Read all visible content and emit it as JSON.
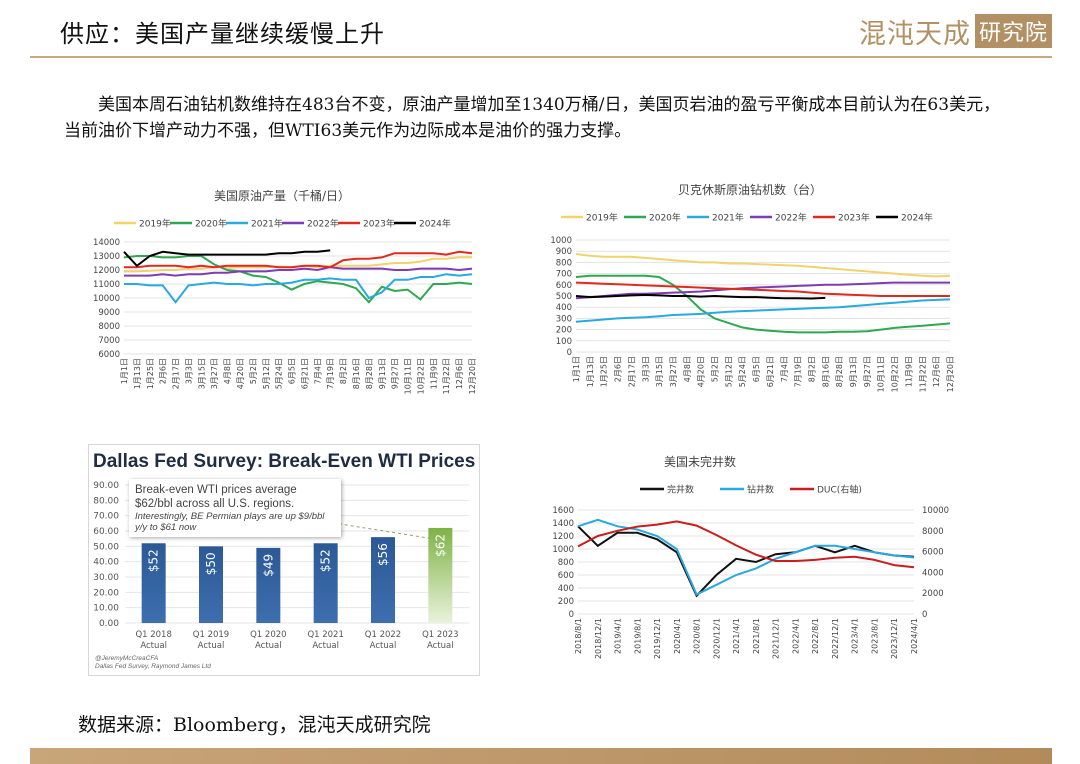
{
  "header": {
    "title": "供应：美国产量继续缓慢上升",
    "logo_text": "混沌天成",
    "logo_box_text": "研究院"
  },
  "paragraph": "美国本周石油钻机数维持在483台不变，原油产量增加至1340万桶/日，美国页岩油的盈亏平衡成本目前认为在63美元，当前油价下增产动力不强，但WTI63美元作为边际成本是油价的强力支撑。",
  "source": "数据来源：Bloomberg，混沌天成研究院",
  "colors": {
    "accent": "#b39064",
    "bar_blue": "#2f5d9a",
    "bar_green": "#7fb245"
  },
  "chart_data": [
    {
      "type": "line",
      "title": "美国原油产量（千桶/日）",
      "xlabel": "",
      "ylabel": "",
      "ylim": [
        6000,
        14000
      ],
      "yticks": [
        6000,
        7000,
        8000,
        9000,
        10000,
        11000,
        12000,
        13000,
        14000
      ],
      "x": [
        "1月1日",
        "1月13日",
        "1月25日",
        "2月6日",
        "2月17日",
        "3月3日",
        "3月15日",
        "3月27日",
        "4月8日",
        "4月20日",
        "5月2日",
        "5月12日",
        "5月24日",
        "6月5日",
        "6月21日",
        "7月4日",
        "7月19日",
        "8月2日",
        "8月16日",
        "8月28日",
        "9月13日",
        "9月27日",
        "10月11日",
        "10月22日",
        "11月9日",
        "11月22日",
        "12月6日",
        "12月20日"
      ],
      "legend_position": "top",
      "series": [
        {
          "name": "2019年",
          "color": "#f3d26c",
          "values": [
            11900,
            11900,
            11950,
            12000,
            12000,
            12100,
            12100,
            12200,
            12150,
            12200,
            12200,
            12200,
            12250,
            12200,
            12300,
            12200,
            12300,
            12300,
            12300,
            12300,
            12400,
            12500,
            12500,
            12600,
            12800,
            12800,
            12900,
            12900
          ]
        },
        {
          "name": "2020年",
          "color": "#2fa84f",
          "values": [
            12900,
            13000,
            13000,
            12900,
            12900,
            13000,
            13000,
            12400,
            12000,
            11900,
            11600,
            11500,
            11100,
            10600,
            11000,
            11200,
            11100,
            11000,
            10700,
            9700,
            10800,
            10500,
            10600,
            9900,
            11000,
            11000,
            11100,
            11000
          ]
        },
        {
          "name": "2021年",
          "color": "#29a9e0",
          "values": [
            11000,
            11000,
            10900,
            10900,
            9700,
            10900,
            11000,
            11100,
            11000,
            11000,
            10900,
            11000,
            11000,
            11100,
            11300,
            11300,
            11400,
            11300,
            11300,
            10000,
            10400,
            11300,
            11300,
            11500,
            11500,
            11700,
            11600,
            11700
          ]
        },
        {
          "name": "2022年",
          "color": "#7d3cb3",
          "values": [
            11600,
            11600,
            11600,
            11700,
            11600,
            11700,
            11700,
            11800,
            11800,
            11900,
            11900,
            11900,
            12000,
            12000,
            12100,
            12000,
            12200,
            12100,
            12100,
            12100,
            12100,
            12000,
            12000,
            12100,
            12100,
            12100,
            12000,
            12100
          ]
        },
        {
          "name": "2023年",
          "color": "#e12a1e",
          "values": [
            12200,
            12200,
            12300,
            12300,
            12300,
            12200,
            12300,
            12200,
            12300,
            12300,
            12300,
            12300,
            12200,
            12200,
            12300,
            12300,
            12200,
            12700,
            12800,
            12800,
            12900,
            13200,
            13200,
            13200,
            13200,
            13100,
            13300,
            13200
          ]
        },
        {
          "name": "2024年",
          "color": "#000000",
          "values": [
            13300,
            12300,
            13000,
            13300,
            13200,
            13100,
            13100,
            13100,
            13100,
            13100,
            13100,
            13100,
            13200,
            13200,
            13300,
            13300,
            13400,
            null,
            null,
            null,
            null,
            null,
            null,
            null,
            null,
            null,
            null,
            null
          ]
        }
      ]
    },
    {
      "type": "line",
      "title": "贝克休斯原油钻机数（台）",
      "xlabel": "",
      "ylabel": "",
      "ylim": [
        0,
        1000
      ],
      "yticks": [
        0,
        100,
        200,
        300,
        400,
        500,
        600,
        700,
        800,
        900,
        1000
      ],
      "x": [
        "1月1日",
        "1月13日",
        "1月25日",
        "2月6日",
        "2月17日",
        "3月3日",
        "3月15日",
        "3月27日",
        "4月8日",
        "4月20日",
        "5月2日",
        "5月12日",
        "5月24日",
        "6月5日",
        "6月21日",
        "7月4日",
        "7月19日",
        "8月2日",
        "8月16日",
        "8月28日",
        "9月13日",
        "9月27日",
        "10月11日",
        "10月22日",
        "11月9日",
        "11月22日",
        "12月6日",
        "12月20日"
      ],
      "legend_position": "top",
      "series": [
        {
          "name": "2019年",
          "color": "#f3d26c",
          "values": [
            875,
            860,
            850,
            850,
            850,
            840,
            830,
            820,
            810,
            800,
            800,
            790,
            790,
            785,
            780,
            775,
            770,
            760,
            750,
            740,
            730,
            720,
            710,
            700,
            690,
            680,
            675,
            680
          ]
        },
        {
          "name": "2020年",
          "color": "#2fa84f",
          "values": [
            670,
            680,
            680,
            680,
            680,
            680,
            670,
            600,
            500,
            380,
            300,
            260,
            220,
            200,
            190,
            180,
            175,
            175,
            175,
            180,
            180,
            185,
            200,
            215,
            225,
            235,
            245,
            255
          ]
        },
        {
          "name": "2021年",
          "color": "#29a9e0",
          "values": [
            270,
            280,
            290,
            300,
            305,
            310,
            320,
            330,
            335,
            340,
            350,
            360,
            365,
            370,
            375,
            380,
            385,
            390,
            395,
            400,
            410,
            420,
            430,
            440,
            450,
            460,
            465,
            470
          ]
        },
        {
          "name": "2022年",
          "color": "#7d3cb3",
          "values": [
            480,
            490,
            500,
            510,
            520,
            520,
            525,
            530,
            535,
            540,
            550,
            560,
            570,
            575,
            580,
            585,
            590,
            595,
            600,
            600,
            605,
            610,
            615,
            620,
            620,
            620,
            620,
            620
          ]
        },
        {
          "name": "2023年",
          "color": "#e12a1e",
          "values": [
            620,
            615,
            610,
            605,
            600,
            595,
            590,
            585,
            580,
            575,
            570,
            565,
            560,
            555,
            550,
            545,
            540,
            530,
            520,
            515,
            510,
            505,
            500,
            500,
            500,
            500,
            500,
            500
          ]
        },
        {
          "name": "2024年",
          "color": "#000000",
          "values": [
            500,
            490,
            495,
            500,
            505,
            510,
            505,
            500,
            500,
            495,
            500,
            495,
            490,
            490,
            485,
            480,
            480,
            478,
            483,
            null,
            null,
            null,
            null,
            null,
            null,
            null,
            null,
            null
          ]
        }
      ]
    },
    {
      "type": "bar",
      "title": "Dallas Fed Survey: Break-Even WTI Prices",
      "categories": [
        "Q1 2018 Actual",
        "Q1 2019 Actual",
        "Q1 2020 Actual",
        "Q1 2021 Actual",
        "Q1 2022 Actual",
        "Q1 2023 Actual"
      ],
      "values": [
        52,
        50,
        49,
        52,
        56,
        62
      ],
      "data_labels": [
        "$52",
        "$50",
        "$49",
        "$52",
        "$56",
        "$62"
      ],
      "ylim": [
        0,
        90
      ],
      "yticks": [
        "0.00",
        "10.00",
        "20.00",
        "30.00",
        "40.00",
        "50.00",
        "60.00",
        "70.00",
        "80.00",
        "90.00"
      ],
      "annotation": "Break-even WTI prices average $62/bbl across all U.S. regions.",
      "annotation_sub": "Interestingly, BE Permian plays are up $9/bbl y/y to $61 now",
      "footnote_1": "@JeremyMcCreaCFA",
      "footnote_2": "Dallas Fed Survey, Raymond James Ltd"
    },
    {
      "type": "line",
      "title": "美国未完井数",
      "legend_position": "top",
      "ylim": [
        0,
        1600
      ],
      "yticks": [
        0,
        200,
        400,
        600,
        800,
        1000,
        1200,
        1400,
        1600
      ],
      "y2lim": [
        0,
        10000
      ],
      "y2ticks": [
        0,
        2000,
        4000,
        6000,
        8000,
        10000
      ],
      "x": [
        "2018/8/1",
        "2018/12/1",
        "2019/4/1",
        "2019/8/1",
        "2019/12/1",
        "2020/4/1",
        "2020/8/1",
        "2020/12/1",
        "2021/4/1",
        "2021/8/1",
        "2021/12/1",
        "2022/4/1",
        "2022/8/1",
        "2022/12/1",
        "2023/4/1",
        "2023/8/1",
        "2023/12/1",
        "2024/4/1"
      ],
      "series": [
        {
          "name": "完井数",
          "color": "#111111",
          "axis": "left",
          "values": [
            1350,
            1050,
            1250,
            1250,
            1150,
            950,
            280,
            600,
            850,
            800,
            920,
            950,
            1050,
            950,
            1050,
            950,
            900,
            880
          ]
        },
        {
          "name": "钻井数",
          "color": "#29a9e0",
          "axis": "left",
          "values": [
            1350,
            1450,
            1350,
            1300,
            1200,
            1000,
            300,
            450,
            600,
            700,
            850,
            950,
            1050,
            1050,
            1000,
            950,
            900,
            870
          ]
        },
        {
          "name": "DUC(右轴)",
          "color": "#c81e1e",
          "axis": "right",
          "values": [
            6500,
            7500,
            8000,
            8400,
            8600,
            8900,
            8500,
            7600,
            6600,
            5700,
            5100,
            5100,
            5200,
            5400,
            5500,
            5200,
            4700,
            4500
          ]
        }
      ]
    }
  ]
}
